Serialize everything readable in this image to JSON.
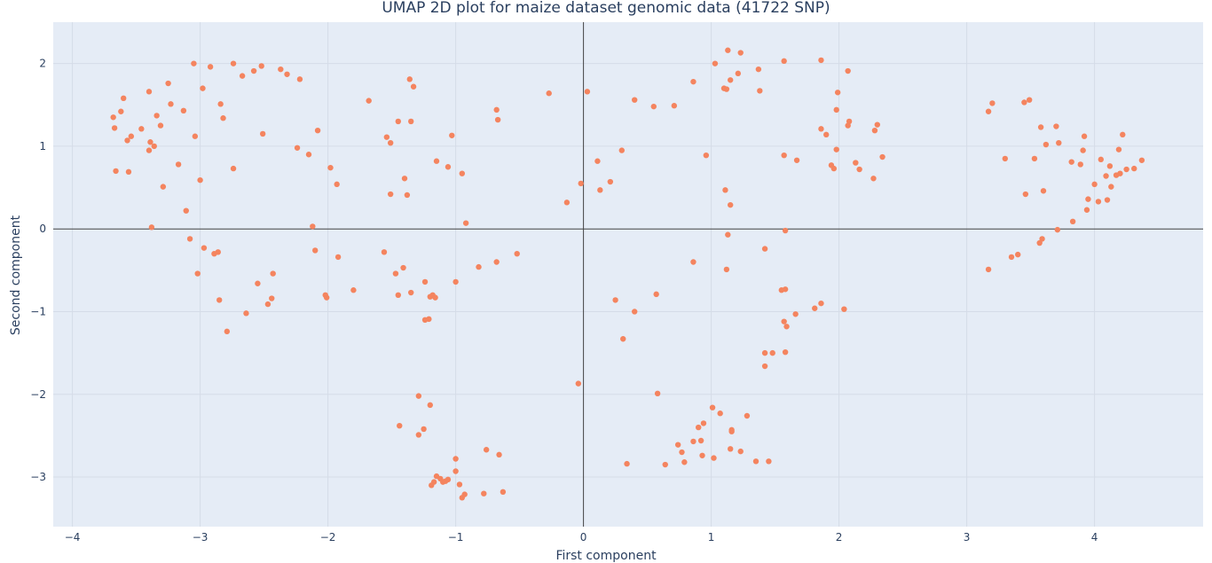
{
  "chart_data": {
    "type": "scatter",
    "title": "UMAP 2D plot for maize dataset genomic data (41722 SNP)",
    "xlabel": "First component",
    "ylabel": "Second component",
    "xlim": [
      -4.15,
      4.85
    ],
    "ylim": [
      -3.6,
      2.5
    ],
    "x_ticks": [
      -4,
      -3,
      -2,
      -1,
      0,
      1,
      2,
      3,
      4
    ],
    "y_ticks": [
      -3,
      -2,
      -1,
      0,
      1,
      2
    ],
    "x_tick_labels": [
      "−4",
      "−3",
      "−2",
      "−1",
      "0",
      "1",
      "2",
      "3",
      "4"
    ],
    "y_tick_labels": [
      "−3",
      "−2",
      "−1",
      "0",
      "1",
      "2"
    ],
    "grid": true,
    "zero_lines": true,
    "colors": {
      "plot_bg": "#e5ecf6",
      "grid": "#d5dce8",
      "zeroline": "#444444",
      "marker": "#f4845f",
      "text": "#2a3f5f"
    },
    "series": [
      {
        "points": [
          [
            -3.68,
            1.35
          ],
          [
            -3.67,
            1.22
          ],
          [
            -3.66,
            0.7
          ],
          [
            -3.62,
            1.42
          ],
          [
            -3.6,
            1.58
          ],
          [
            -3.57,
            1.07
          ],
          [
            -3.56,
            0.69
          ],
          [
            -3.54,
            1.12
          ],
          [
            -3.46,
            1.21
          ],
          [
            -3.4,
            1.66
          ],
          [
            -3.4,
            0.95
          ],
          [
            -3.39,
            1.05
          ],
          [
            -3.38,
            0.02
          ],
          [
            -3.36,
            1.0
          ],
          [
            -3.34,
            1.37
          ],
          [
            -3.31,
            1.25
          ],
          [
            -3.29,
            0.51
          ],
          [
            -3.25,
            1.76
          ],
          [
            -3.23,
            1.51
          ],
          [
            -3.17,
            0.78
          ],
          [
            -3.13,
            1.43
          ],
          [
            -3.11,
            0.22
          ],
          [
            -3.08,
            -0.12
          ],
          [
            -3.05,
            2.0
          ],
          [
            -3.04,
            1.12
          ],
          [
            -3.02,
            -0.54
          ],
          [
            -3.0,
            0.59
          ],
          [
            -2.98,
            1.7
          ],
          [
            -2.97,
            -0.23
          ],
          [
            -2.92,
            1.96
          ],
          [
            -2.89,
            -0.3
          ],
          [
            -2.86,
            -0.28
          ],
          [
            -2.85,
            -0.86
          ],
          [
            -2.84,
            1.51
          ],
          [
            -2.82,
            1.34
          ],
          [
            -2.79,
            -1.24
          ],
          [
            -2.74,
            2.0
          ],
          [
            -2.74,
            0.73
          ],
          [
            -2.67,
            1.85
          ],
          [
            -2.64,
            -1.02
          ],
          [
            -2.58,
            1.91
          ],
          [
            -2.55,
            -0.66
          ],
          [
            -2.52,
            1.97
          ],
          [
            -2.51,
            1.15
          ],
          [
            -2.47,
            -0.91
          ],
          [
            -2.44,
            -0.84
          ],
          [
            -2.43,
            -0.54
          ],
          [
            -2.37,
            1.93
          ],
          [
            -2.32,
            1.87
          ],
          [
            -2.24,
            0.98
          ],
          [
            -2.22,
            1.81
          ],
          [
            -2.15,
            0.9
          ],
          [
            -2.12,
            0.03
          ],
          [
            -2.1,
            -0.26
          ],
          [
            -2.08,
            1.19
          ],
          [
            -2.02,
            -0.8
          ],
          [
            -2.01,
            -0.83
          ],
          [
            -1.98,
            0.74
          ],
          [
            -1.93,
            0.54
          ],
          [
            -1.92,
            -0.34
          ],
          [
            -1.8,
            -0.74
          ],
          [
            -1.68,
            1.55
          ],
          [
            -1.56,
            -0.28
          ],
          [
            -1.54,
            1.11
          ],
          [
            -1.51,
            1.04
          ],
          [
            -1.51,
            0.42
          ],
          [
            -1.47,
            -0.54
          ],
          [
            -1.45,
            -0.8
          ],
          [
            -1.45,
            1.3
          ],
          [
            -1.44,
            -2.38
          ],
          [
            -1.41,
            -0.47
          ],
          [
            -1.4,
            0.61
          ],
          [
            -1.38,
            0.41
          ],
          [
            -1.36,
            1.81
          ],
          [
            -1.35,
            -0.77
          ],
          [
            -1.35,
            1.3
          ],
          [
            -1.33,
            1.72
          ],
          [
            -1.29,
            -2.02
          ],
          [
            -1.29,
            -2.49
          ],
          [
            -1.25,
            -2.42
          ],
          [
            -1.24,
            -0.64
          ],
          [
            -1.24,
            -1.1
          ],
          [
            -1.21,
            -1.09
          ],
          [
            -1.2,
            -0.82
          ],
          [
            -1.2,
            -2.13
          ],
          [
            -1.19,
            -3.1
          ],
          [
            -1.18,
            -0.8
          ],
          [
            -1.17,
            -3.06
          ],
          [
            -1.16,
            -0.83
          ],
          [
            -1.15,
            -2.99
          ],
          [
            -1.15,
            0.82
          ],
          [
            -1.12,
            -3.02
          ],
          [
            -1.1,
            -3.06
          ],
          [
            -1.08,
            -3.05
          ],
          [
            -1.06,
            -3.03
          ],
          [
            -1.06,
            0.75
          ],
          [
            -1.03,
            1.13
          ],
          [
            -1.0,
            -0.64
          ],
          [
            -1.0,
            -2.78
          ],
          [
            -1.0,
            -2.93
          ],
          [
            -0.97,
            -3.09
          ],
          [
            -0.95,
            -3.25
          ],
          [
            -0.95,
            0.67
          ],
          [
            -0.93,
            -3.21
          ],
          [
            -0.92,
            0.07
          ],
          [
            -0.82,
            -0.46
          ],
          [
            -0.78,
            -3.2
          ],
          [
            -0.76,
            -2.67
          ],
          [
            -0.68,
            1.44
          ],
          [
            -0.68,
            -0.4
          ],
          [
            -0.67,
            1.32
          ],
          [
            -0.66,
            -2.73
          ],
          [
            -0.63,
            -3.18
          ],
          [
            -0.52,
            -0.3
          ],
          [
            -0.27,
            1.64
          ],
          [
            -0.13,
            0.32
          ],
          [
            -0.04,
            -1.87
          ],
          [
            -0.02,
            0.55
          ],
          [
            0.03,
            1.66
          ],
          [
            0.11,
            0.82
          ],
          [
            0.13,
            0.47
          ],
          [
            0.21,
            0.57
          ],
          [
            0.25,
            -0.86
          ],
          [
            0.3,
            0.95
          ],
          [
            0.31,
            -1.33
          ],
          [
            0.34,
            -2.84
          ],
          [
            0.4,
            -1.0
          ],
          [
            0.4,
            1.56
          ],
          [
            0.55,
            1.48
          ],
          [
            0.57,
            -0.79
          ],
          [
            0.58,
            -1.99
          ],
          [
            0.64,
            -2.85
          ],
          [
            0.71,
            1.49
          ],
          [
            0.74,
            -2.61
          ],
          [
            0.77,
            -2.7
          ],
          [
            0.79,
            -2.82
          ],
          [
            0.86,
            -2.57
          ],
          [
            0.86,
            -0.4
          ],
          [
            0.86,
            1.78
          ],
          [
            0.9,
            -2.4
          ],
          [
            0.92,
            -2.56
          ],
          [
            0.93,
            -2.74
          ],
          [
            0.94,
            -2.35
          ],
          [
            0.96,
            0.89
          ],
          [
            1.01,
            -2.16
          ],
          [
            1.02,
            -2.77
          ],
          [
            1.03,
            2.0
          ],
          [
            1.07,
            -2.23
          ],
          [
            1.1,
            1.7
          ],
          [
            1.11,
            0.47
          ],
          [
            1.12,
            1.69
          ],
          [
            1.12,
            -0.49
          ],
          [
            1.13,
            2.16
          ],
          [
            1.13,
            -0.07
          ],
          [
            1.15,
            -2.66
          ],
          [
            1.15,
            0.29
          ],
          [
            1.15,
            1.8
          ],
          [
            1.16,
            -2.43
          ],
          [
            1.16,
            -2.45
          ],
          [
            1.21,
            1.88
          ],
          [
            1.23,
            2.13
          ],
          [
            1.23,
            -2.69
          ],
          [
            1.28,
            -2.26
          ],
          [
            1.35,
            -2.81
          ],
          [
            1.37,
            1.93
          ],
          [
            1.38,
            1.67
          ],
          [
            1.42,
            -0.24
          ],
          [
            1.42,
            -1.5
          ],
          [
            1.42,
            -1.66
          ],
          [
            1.45,
            -2.81
          ],
          [
            1.48,
            -1.5
          ],
          [
            1.55,
            -0.74
          ],
          [
            1.57,
            2.03
          ],
          [
            1.57,
            0.89
          ],
          [
            1.57,
            -1.12
          ],
          [
            1.58,
            -0.02
          ],
          [
            1.58,
            -0.73
          ],
          [
            1.58,
            -1.49
          ],
          [
            1.59,
            -1.18
          ],
          [
            1.66,
            -1.03
          ],
          [
            1.67,
            0.83
          ],
          [
            1.81,
            -0.96
          ],
          [
            1.86,
            -0.9
          ],
          [
            1.86,
            1.21
          ],
          [
            1.86,
            2.04
          ],
          [
            1.9,
            1.14
          ],
          [
            1.94,
            0.77
          ],
          [
            1.96,
            0.73
          ],
          [
            1.98,
            0.96
          ],
          [
            1.98,
            1.44
          ],
          [
            1.99,
            1.65
          ],
          [
            2.04,
            -0.97
          ],
          [
            2.07,
            1.25
          ],
          [
            2.07,
            1.91
          ],
          [
            2.08,
            1.3
          ],
          [
            2.13,
            0.8
          ],
          [
            2.16,
            0.72
          ],
          [
            2.27,
            0.61
          ],
          [
            2.28,
            1.19
          ],
          [
            2.3,
            1.26
          ],
          [
            2.34,
            0.87
          ],
          [
            3.17,
            -0.49
          ],
          [
            3.17,
            1.42
          ],
          [
            3.2,
            1.52
          ],
          [
            3.3,
            0.85
          ],
          [
            3.35,
            -0.34
          ],
          [
            3.4,
            -0.31
          ],
          [
            3.45,
            1.53
          ],
          [
            3.46,
            0.42
          ],
          [
            3.49,
            1.56
          ],
          [
            3.53,
            0.85
          ],
          [
            3.57,
            -0.17
          ],
          [
            3.58,
            1.23
          ],
          [
            3.59,
            -0.12
          ],
          [
            3.6,
            0.46
          ],
          [
            3.62,
            1.02
          ],
          [
            3.7,
            1.24
          ],
          [
            3.71,
            -0.01
          ],
          [
            3.72,
            1.04
          ],
          [
            3.82,
            0.81
          ],
          [
            3.83,
            0.09
          ],
          [
            3.89,
            0.78
          ],
          [
            3.91,
            0.95
          ],
          [
            3.92,
            1.12
          ],
          [
            3.94,
            0.23
          ],
          [
            3.95,
            0.36
          ],
          [
            4.0,
            0.54
          ],
          [
            4.03,
            0.33
          ],
          [
            4.05,
            0.84
          ],
          [
            4.09,
            0.64
          ],
          [
            4.1,
            0.35
          ],
          [
            4.12,
            0.76
          ],
          [
            4.13,
            0.51
          ],
          [
            4.17,
            0.65
          ],
          [
            4.19,
            0.96
          ],
          [
            4.2,
            0.67
          ],
          [
            4.22,
            1.14
          ],
          [
            4.25,
            0.72
          ],
          [
            4.31,
            0.73
          ],
          [
            4.37,
            0.83
          ]
        ]
      }
    ]
  }
}
